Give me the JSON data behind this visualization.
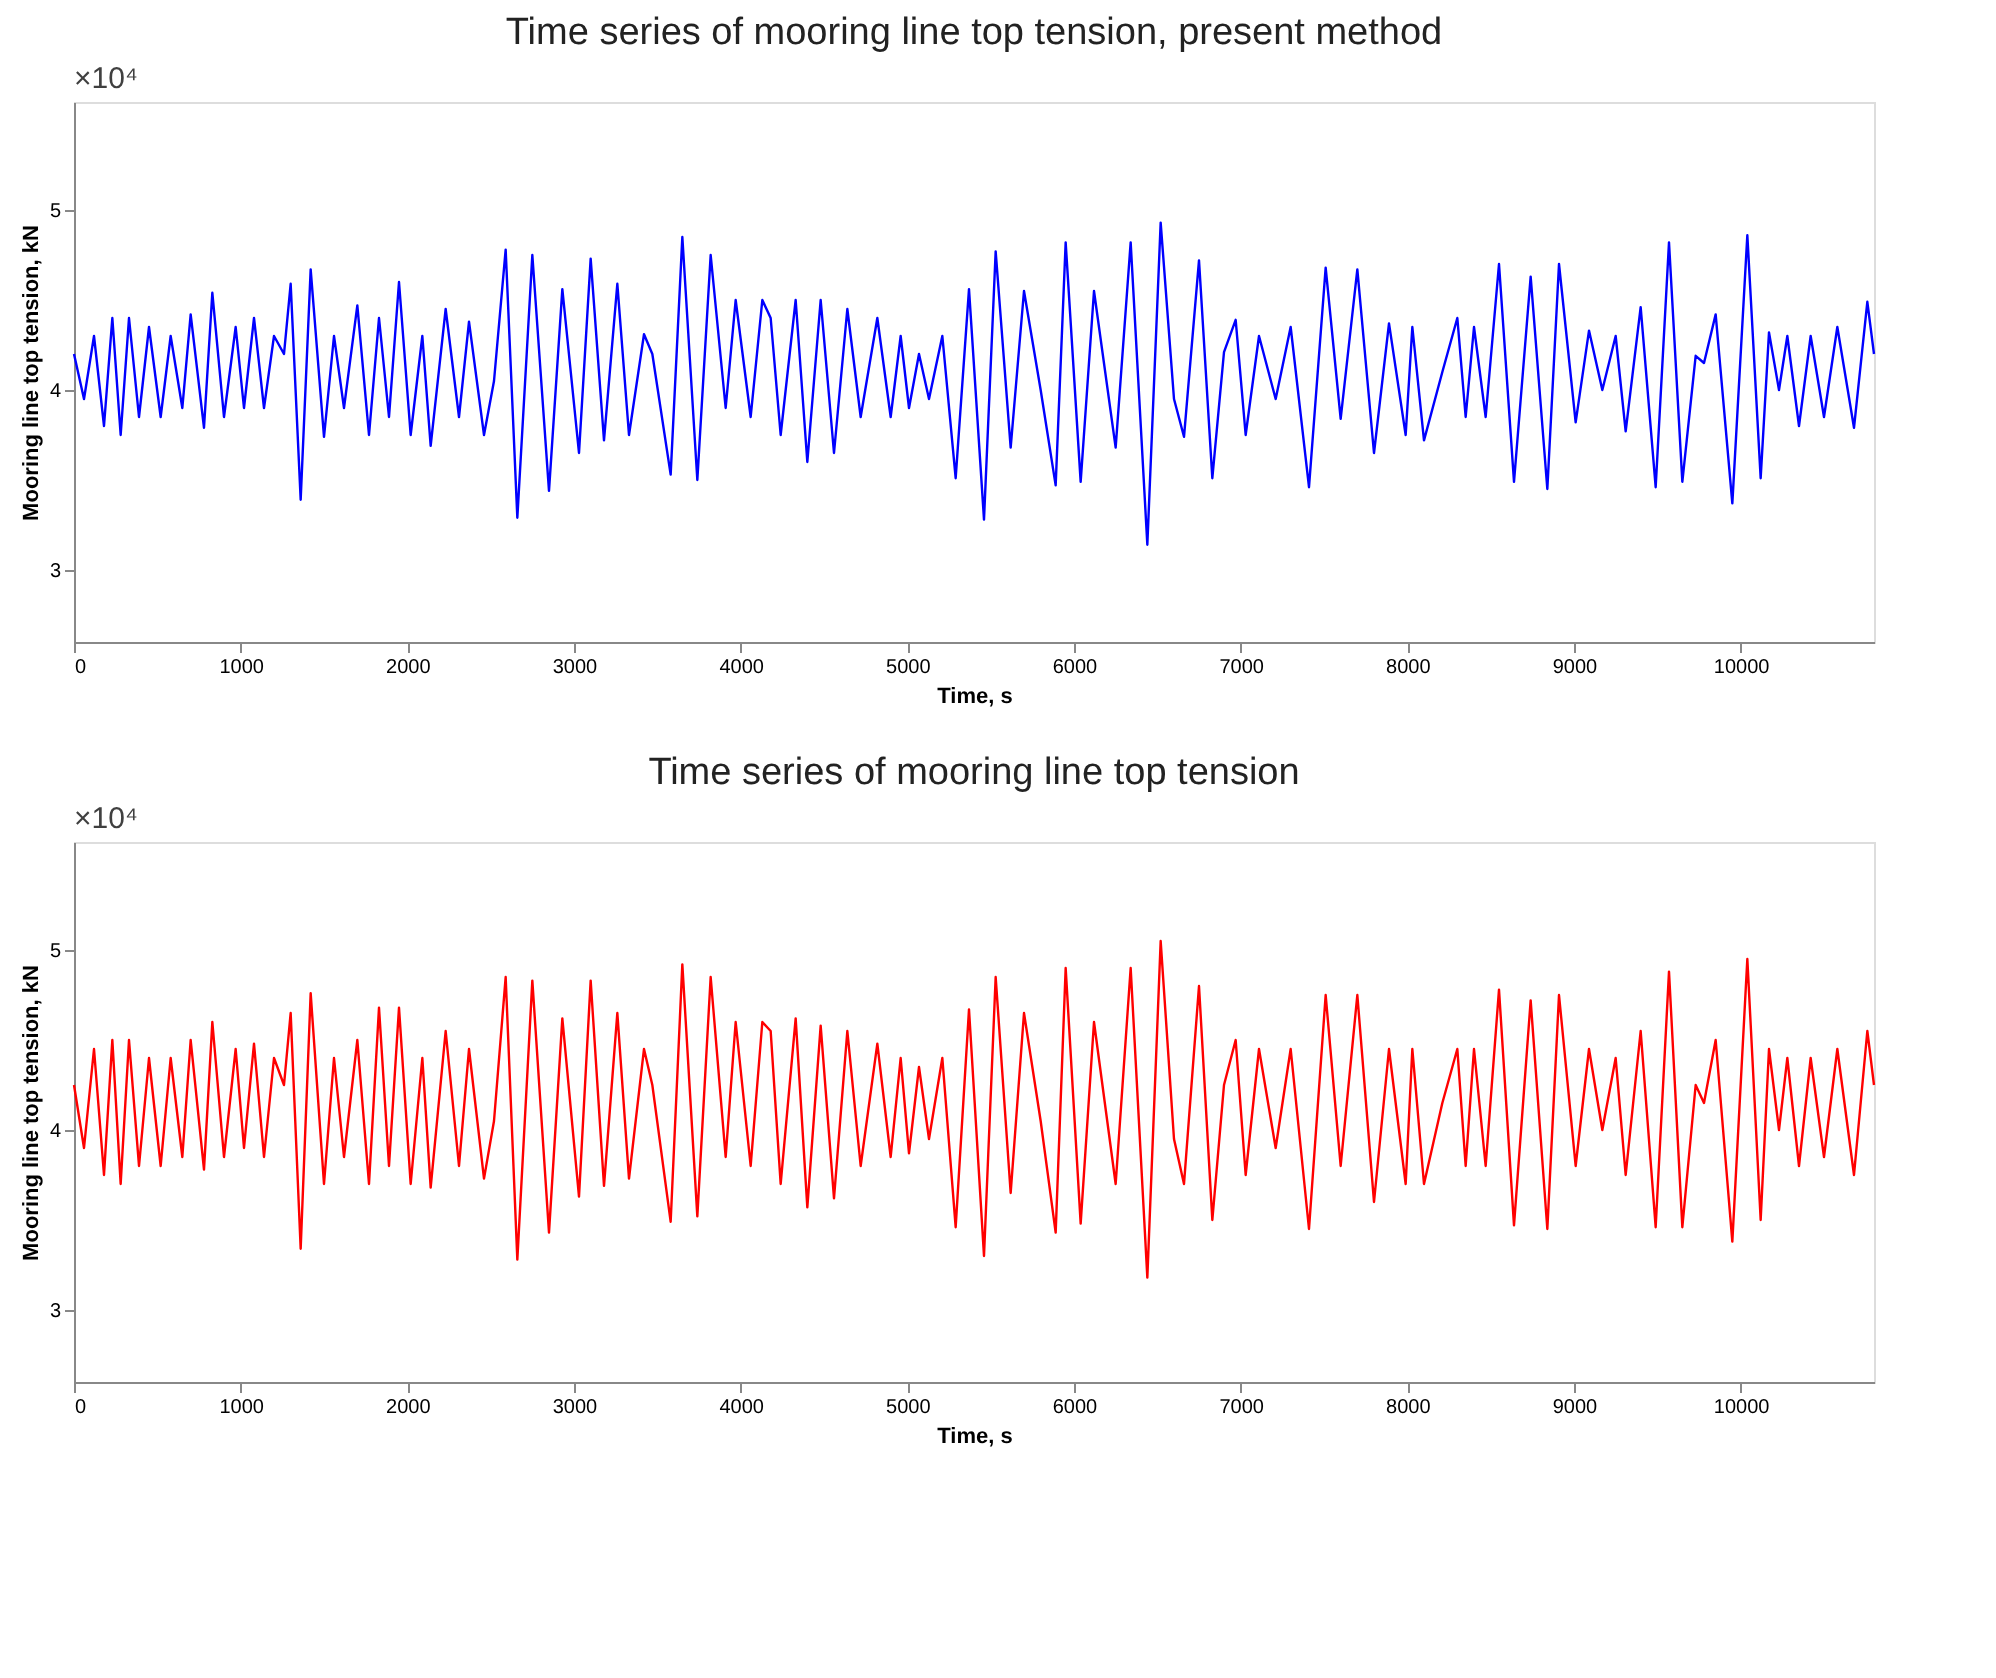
{
  "chart_data": [
    {
      "type": "line",
      "title": "Time series of mooring line top tension, present method",
      "xlabel": "Time, s",
      "ylabel": "Mooring line top tension, kN",
      "annotations": [
        "×10⁴"
      ],
      "xlim": [
        0,
        10800
      ],
      "xticks": [
        0,
        1000,
        2000,
        3000,
        4000,
        5000,
        6000,
        7000,
        8000,
        9000,
        10000
      ],
      "ylim": [
        2.6,
        5.6
      ],
      "yticks": [
        3,
        4,
        5
      ],
      "grid": false,
      "line_style": "solid",
      "marker": "none",
      "x": [
        0,
        60,
        120,
        180,
        230,
        280,
        330,
        390,
        450,
        520,
        580,
        650,
        700,
        780,
        830,
        900,
        970,
        1020,
        1080,
        1140,
        1200,
        1260,
        1300,
        1360,
        1420,
        1500,
        1560,
        1620,
        1700,
        1770,
        1830,
        1890,
        1950,
        2020,
        2090,
        2140,
        2230,
        2310,
        2370,
        2460,
        2520,
        2590,
        2660,
        2750,
        2850,
        2930,
        3030,
        3100,
        3180,
        3260,
        3330,
        3420,
        3470,
        3580,
        3650,
        3740,
        3820,
        3910,
        3970,
        4060,
        4130,
        4180,
        4240,
        4330,
        4400,
        4480,
        4560,
        4640,
        4720,
        4820,
        4900,
        4960,
        5010,
        5070,
        5130,
        5210,
        5290,
        5370,
        5460,
        5530,
        5620,
        5700,
        5800,
        5890,
        5950,
        6040,
        6120,
        6250,
        6340,
        6440,
        6520,
        6600,
        6660,
        6750,
        6830,
        6900,
        6970,
        7030,
        7110,
        7210,
        7300,
        7410,
        7510,
        7600,
        7700,
        7800,
        7890,
        7990,
        8030,
        8100,
        8210,
        8300,
        8350,
        8400,
        8470,
        8550,
        8640,
        8740,
        8840,
        8910,
        9010,
        9090,
        9170,
        9250,
        9310,
        9400,
        9490,
        9570,
        9650,
        9730,
        9780,
        9850,
        9950,
        10040,
        10120,
        10170,
        10230,
        10280,
        10350,
        10420,
        10500,
        10580,
        10680,
        10760,
        10800
      ],
      "series": [
        {
          "color": "#0000ff",
          "values": [
            4.2,
            3.95,
            4.3,
            3.8,
            4.4,
            3.75,
            4.4,
            3.85,
            4.35,
            3.85,
            4.3,
            3.9,
            4.42,
            3.79,
            4.54,
            3.85,
            4.35,
            3.9,
            4.4,
            3.9,
            4.3,
            4.2,
            4.59,
            3.39,
            4.67,
            3.74,
            4.3,
            3.9,
            4.47,
            3.75,
            4.4,
            3.85,
            4.6,
            3.75,
            4.3,
            3.69,
            4.45,
            3.85,
            4.38,
            3.75,
            4.05,
            4.78,
            3.29,
            4.75,
            3.44,
            4.56,
            3.65,
            4.73,
            3.72,
            4.59,
            3.75,
            4.31,
            4.2,
            3.53,
            4.85,
            3.5,
            4.75,
            3.9,
            4.5,
            3.85,
            4.5,
            4.4,
            3.75,
            4.5,
            3.6,
            4.5,
            3.65,
            4.45,
            3.85,
            4.4,
            3.85,
            4.3,
            3.9,
            4.2,
            3.95,
            4.3,
            3.51,
            4.56,
            3.28,
            4.77,
            3.68,
            4.55,
            4.0,
            3.47,
            4.82,
            3.49,
            4.55,
            3.68,
            4.82,
            3.14,
            4.93,
            3.95,
            3.74,
            4.72,
            3.51,
            4.21,
            4.39,
            3.75,
            4.3,
            3.95,
            4.35,
            3.46,
            4.68,
            3.84,
            4.67,
            3.65,
            4.37,
            3.75,
            4.35,
            3.72,
            4.1,
            4.4,
            3.85,
            4.35,
            3.85,
            4.7,
            3.49,
            4.63,
            3.45,
            4.7,
            3.82,
            4.33,
            4.0,
            4.3,
            3.77,
            4.46,
            3.46,
            4.82,
            3.49,
            4.19,
            4.15,
            4.42,
            3.37,
            4.86,
            3.51,
            4.32,
            4.0,
            4.3,
            3.8,
            4.3,
            3.85,
            4.35,
            3.79,
            4.49,
            4.2
          ]
        }
      ]
    },
    {
      "type": "line",
      "title": "Time series of mooring line top tension",
      "xlabel": "Time, s",
      "ylabel": "Mooring line top tension, kN",
      "annotations": [
        "×10⁴"
      ],
      "xlim": [
        0,
        10800
      ],
      "xticks": [
        0,
        1000,
        2000,
        3000,
        4000,
        5000,
        6000,
        7000,
        8000,
        9000,
        10000
      ],
      "ylim": [
        2.6,
        5.6
      ],
      "yticks": [
        3,
        4,
        5
      ],
      "grid": false,
      "line_style": "solid",
      "marker": "none",
      "x": [
        0,
        60,
        120,
        180,
        230,
        280,
        330,
        390,
        450,
        520,
        580,
        650,
        700,
        780,
        830,
        900,
        970,
        1020,
        1080,
        1140,
        1200,
        1260,
        1300,
        1360,
        1420,
        1500,
        1560,
        1620,
        1700,
        1770,
        1830,
        1890,
        1950,
        2020,
        2090,
        2140,
        2230,
        2310,
        2370,
        2460,
        2520,
        2590,
        2660,
        2750,
        2850,
        2930,
        3030,
        3100,
        3180,
        3260,
        3330,
        3420,
        3470,
        3580,
        3650,
        3740,
        3820,
        3910,
        3970,
        4060,
        4130,
        4180,
        4240,
        4330,
        4400,
        4480,
        4560,
        4640,
        4720,
        4820,
        4900,
        4960,
        5010,
        5070,
        5130,
        5210,
        5290,
        5370,
        5460,
        5530,
        5620,
        5700,
        5800,
        5890,
        5950,
        6040,
        6120,
        6250,
        6340,
        6440,
        6520,
        6600,
        6660,
        6750,
        6830,
        6900,
        6970,
        7030,
        7110,
        7210,
        7300,
        7410,
        7510,
        7600,
        7700,
        7800,
        7890,
        7990,
        8030,
        8100,
        8210,
        8300,
        8350,
        8400,
        8470,
        8550,
        8640,
        8740,
        8840,
        8910,
        9010,
        9090,
        9170,
        9250,
        9310,
        9400,
        9490,
        9570,
        9650,
        9730,
        9780,
        9850,
        9950,
        10040,
        10120,
        10170,
        10230,
        10280,
        10350,
        10420,
        10500,
        10580,
        10680,
        10760,
        10800
      ],
      "series": [
        {
          "color": "#ff0000",
          "values": [
            4.25,
            3.9,
            4.45,
            3.75,
            4.5,
            3.7,
            4.5,
            3.8,
            4.4,
            3.8,
            4.4,
            3.85,
            4.5,
            3.78,
            4.6,
            3.85,
            4.45,
            3.9,
            4.48,
            3.85,
            4.4,
            4.25,
            4.65,
            3.34,
            4.76,
            3.7,
            4.4,
            3.85,
            4.5,
            3.7,
            4.68,
            3.8,
            4.68,
            3.7,
            4.4,
            3.68,
            4.55,
            3.8,
            4.45,
            3.73,
            4.05,
            4.85,
            3.28,
            4.83,
            3.43,
            4.62,
            3.63,
            4.83,
            3.69,
            4.65,
            3.73,
            4.45,
            4.25,
            3.49,
            4.92,
            3.52,
            4.85,
            3.85,
            4.6,
            3.8,
            4.6,
            4.55,
            3.7,
            4.62,
            3.57,
            4.58,
            3.62,
            4.55,
            3.8,
            4.48,
            3.85,
            4.4,
            3.87,
            4.35,
            3.95,
            4.4,
            3.46,
            4.67,
            3.3,
            4.85,
            3.65,
            4.65,
            4.05,
            3.43,
            4.9,
            3.48,
            4.6,
            3.7,
            4.9,
            3.18,
            5.05,
            3.95,
            3.7,
            4.8,
            3.5,
            4.25,
            4.5,
            3.75,
            4.45,
            3.9,
            4.45,
            3.45,
            4.75,
            3.8,
            4.75,
            3.6,
            4.45,
            3.7,
            4.45,
            3.7,
            4.15,
            4.45,
            3.8,
            4.45,
            3.8,
            4.78,
            3.47,
            4.72,
            3.45,
            4.75,
            3.8,
            4.45,
            4.0,
            4.4,
            3.75,
            4.55,
            3.46,
            4.88,
            3.46,
            4.25,
            4.15,
            4.5,
            3.38,
            4.95,
            3.5,
            4.45,
            4.0,
            4.4,
            3.8,
            4.4,
            3.85,
            4.45,
            3.75,
            4.55,
            4.25
          ]
        }
      ]
    }
  ]
}
